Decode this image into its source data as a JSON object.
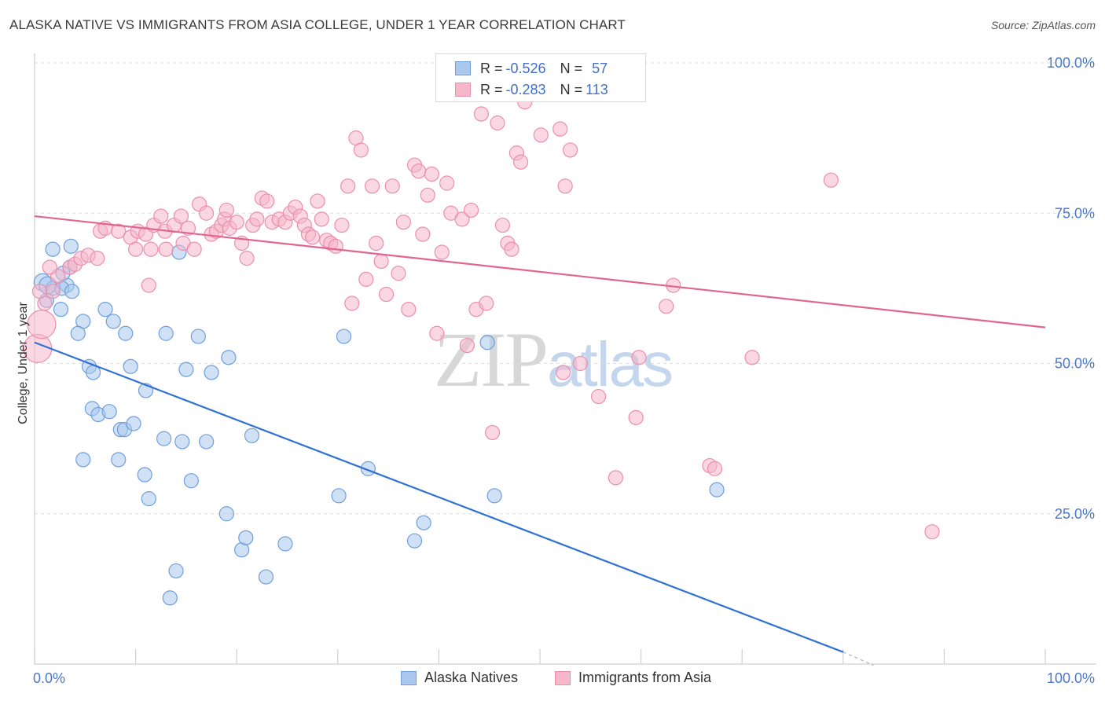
{
  "header": {
    "title": "ALASKA NATIVE VS IMMIGRANTS FROM ASIA COLLEGE, UNDER 1 YEAR CORRELATION CHART",
    "source": "Source: ZipAtlas.com"
  },
  "watermark": {
    "zip": "ZIP",
    "atlas": "atlas"
  },
  "legend_top": {
    "rows": [
      {
        "r_label": "R =",
        "r_value": "-0.526",
        "n_label": "N =",
        "n_value": "57"
      },
      {
        "r_label": "R =",
        "r_value": "-0.283",
        "n_label": "N =",
        "n_value": "113"
      }
    ]
  },
  "legend_bottom": {
    "items": [
      "Alaska Natives",
      "Immigrants from Asia"
    ]
  },
  "colors": {
    "blue_fill": "#aac8ee",
    "blue_stroke": "#6f9fdb",
    "blue_line": "#2f72d4",
    "pink_fill": "#f6b7cb",
    "pink_stroke": "#ea8fae",
    "pink_line": "#e0668f",
    "grid": "#dcdcdc",
    "axis_text": "#4a78c8"
  },
  "chart_data": {
    "type": "scatter",
    "title": "ALASKA NATIVE VS IMMIGRANTS FROM ASIA COLLEGE, UNDER 1 YEAR CORRELATION CHART",
    "xlabel": "",
    "ylabel": "College, Under 1 year",
    "xlim": [
      0,
      100
    ],
    "ylim": [
      0,
      100
    ],
    "x_tick_labels": [
      "0.0%",
      "100.0%"
    ],
    "y_tick_labels": [
      "25.0%",
      "50.0%",
      "75.0%",
      "100.0%"
    ],
    "y_ticks": [
      25,
      50,
      75,
      100
    ],
    "grid": true,
    "legend_position": "bottom",
    "series": [
      {
        "name": "Alaska Natives",
        "r": -0.526,
        "n": 57,
        "trend": {
          "x": [
            0,
            80
          ],
          "y": [
            53.5,
            2.0
          ]
        },
        "points": [
          [
            0.8,
            63.5
          ],
          [
            1.8,
            62.5
          ],
          [
            1.2,
            60.5
          ],
          [
            3.5,
            66.0
          ],
          [
            1.3,
            63.0
          ],
          [
            3.2,
            63.0
          ],
          [
            2.7,
            62.5
          ],
          [
            3.7,
            62.0
          ],
          [
            1.8,
            69.0
          ],
          [
            3.6,
            69.5
          ],
          [
            2.8,
            65.0
          ],
          [
            2.6,
            59.0
          ],
          [
            4.8,
            57.0
          ],
          [
            7.0,
            59.0
          ],
          [
            7.8,
            57.0
          ],
          [
            9.0,
            55.0
          ],
          [
            4.3,
            55.0
          ],
          [
            13.0,
            55.0
          ],
          [
            16.2,
            54.5
          ],
          [
            14.3,
            68.5
          ],
          [
            5.4,
            49.5
          ],
          [
            5.8,
            48.5
          ],
          [
            9.5,
            49.5
          ],
          [
            15.0,
            49.0
          ],
          [
            17.5,
            48.5
          ],
          [
            19.2,
            51.0
          ],
          [
            11.0,
            45.5
          ],
          [
            5.7,
            42.5
          ],
          [
            6.3,
            41.5
          ],
          [
            7.4,
            42.0
          ],
          [
            8.5,
            39.0
          ],
          [
            8.9,
            39.0
          ],
          [
            9.8,
            40.0
          ],
          [
            12.8,
            37.5
          ],
          [
            14.6,
            37.0
          ],
          [
            17.0,
            37.0
          ],
          [
            21.5,
            38.0
          ],
          [
            4.8,
            34.0
          ],
          [
            8.3,
            34.0
          ],
          [
            10.9,
            31.5
          ],
          [
            15.5,
            30.5
          ],
          [
            11.3,
            27.5
          ],
          [
            19.0,
            25.0
          ],
          [
            20.5,
            19.0
          ],
          [
            20.9,
            21.0
          ],
          [
            24.8,
            20.0
          ],
          [
            22.9,
            14.5
          ],
          [
            14.0,
            15.5
          ],
          [
            13.4,
            11.0
          ],
          [
            30.1,
            28.0
          ],
          [
            33.0,
            32.5
          ],
          [
            38.5,
            23.5
          ],
          [
            37.6,
            20.5
          ],
          [
            30.6,
            54.5
          ],
          [
            44.8,
            53.5
          ],
          [
            45.5,
            28.0
          ],
          [
            67.5,
            29.0
          ]
        ]
      },
      {
        "name": "Immigrants from Asia",
        "r": -0.283,
        "n": 113,
        "trend": {
          "x": [
            0,
            100
          ],
          "y": [
            74.5,
            56.0
          ]
        },
        "points": [
          [
            0.3,
            52.5
          ],
          [
            0.7,
            56.5
          ],
          [
            1.0,
            60.0
          ],
          [
            1.8,
            62.0
          ],
          [
            2.3,
            64.5
          ],
          [
            3.5,
            66.0
          ],
          [
            4.0,
            66.5
          ],
          [
            4.6,
            67.5
          ],
          [
            5.3,
            68.0
          ],
          [
            6.2,
            67.5
          ],
          [
            6.5,
            72.0
          ],
          [
            7.0,
            72.5
          ],
          [
            8.3,
            72.0
          ],
          [
            9.5,
            71.0
          ],
          [
            10.0,
            69.0
          ],
          [
            10.2,
            72.0
          ],
          [
            11.0,
            71.5
          ],
          [
            11.3,
            63.0
          ],
          [
            11.5,
            69.0
          ],
          [
            11.8,
            73.0
          ],
          [
            12.5,
            74.5
          ],
          [
            12.9,
            72.0
          ],
          [
            13.0,
            69.0
          ],
          [
            13.8,
            73.0
          ],
          [
            14.5,
            74.5
          ],
          [
            14.7,
            70.0
          ],
          [
            15.2,
            72.5
          ],
          [
            15.8,
            69.0
          ],
          [
            16.3,
            76.5
          ],
          [
            17.0,
            75.0
          ],
          [
            17.5,
            71.5
          ],
          [
            18.0,
            72.0
          ],
          [
            18.5,
            73.0
          ],
          [
            18.8,
            74.0
          ],
          [
            19.0,
            75.5
          ],
          [
            19.3,
            72.5
          ],
          [
            20.0,
            73.5
          ],
          [
            20.5,
            70.0
          ],
          [
            21.0,
            67.5
          ],
          [
            21.6,
            73.0
          ],
          [
            22.0,
            74.0
          ],
          [
            22.5,
            77.5
          ],
          [
            23.0,
            77.0
          ],
          [
            23.5,
            73.5
          ],
          [
            24.2,
            74.0
          ],
          [
            24.8,
            73.5
          ],
          [
            25.3,
            75.0
          ],
          [
            25.8,
            76.0
          ],
          [
            26.3,
            74.5
          ],
          [
            26.7,
            73.0
          ],
          [
            27.1,
            71.5
          ],
          [
            27.5,
            71.0
          ],
          [
            28.0,
            77.0
          ],
          [
            28.4,
            74.0
          ],
          [
            28.9,
            70.5
          ],
          [
            29.3,
            70.0
          ],
          [
            29.8,
            69.5
          ],
          [
            30.4,
            73.0
          ],
          [
            31.0,
            79.5
          ],
          [
            31.4,
            60.0
          ],
          [
            31.8,
            87.5
          ],
          [
            32.3,
            85.5
          ],
          [
            32.8,
            64.0
          ],
          [
            33.4,
            79.5
          ],
          [
            33.8,
            70.0
          ],
          [
            34.3,
            67.0
          ],
          [
            34.8,
            61.5
          ],
          [
            35.4,
            79.5
          ],
          [
            36.0,
            65.0
          ],
          [
            36.5,
            73.5
          ],
          [
            37.0,
            59.0
          ],
          [
            37.6,
            83.0
          ],
          [
            38.0,
            82.0
          ],
          [
            38.4,
            71.5
          ],
          [
            38.9,
            78.0
          ],
          [
            39.3,
            81.5
          ],
          [
            39.8,
            55.0
          ],
          [
            40.3,
            68.5
          ],
          [
            40.8,
            80.0
          ],
          [
            41.2,
            75.0
          ],
          [
            42.3,
            74.0
          ],
          [
            42.8,
            53.0
          ],
          [
            43.2,
            75.5
          ],
          [
            43.7,
            59.0
          ],
          [
            44.2,
            91.5
          ],
          [
            44.7,
            60.0
          ],
          [
            45.3,
            38.5
          ],
          [
            45.8,
            90.0
          ],
          [
            46.3,
            73.0
          ],
          [
            46.8,
            70.0
          ],
          [
            47.2,
            69.0
          ],
          [
            47.7,
            85.0
          ],
          [
            48.1,
            83.5
          ],
          [
            48.5,
            93.5
          ],
          [
            50.1,
            88.0
          ],
          [
            52.0,
            89.0
          ],
          [
            52.5,
            79.5
          ],
          [
            53.0,
            85.5
          ],
          [
            52.3,
            48.5
          ],
          [
            54.0,
            50.0
          ],
          [
            55.8,
            44.5
          ],
          [
            57.5,
            31.0
          ],
          [
            59.5,
            41.0
          ],
          [
            59.8,
            51.0
          ],
          [
            62.5,
            59.5
          ],
          [
            63.2,
            63.0
          ],
          [
            66.8,
            33.0
          ],
          [
            67.3,
            32.5
          ],
          [
            71.0,
            51.0
          ],
          [
            78.8,
            80.5
          ],
          [
            88.8,
            22.0
          ],
          [
            0.5,
            62.0
          ],
          [
            1.5,
            66.0
          ]
        ]
      }
    ]
  }
}
